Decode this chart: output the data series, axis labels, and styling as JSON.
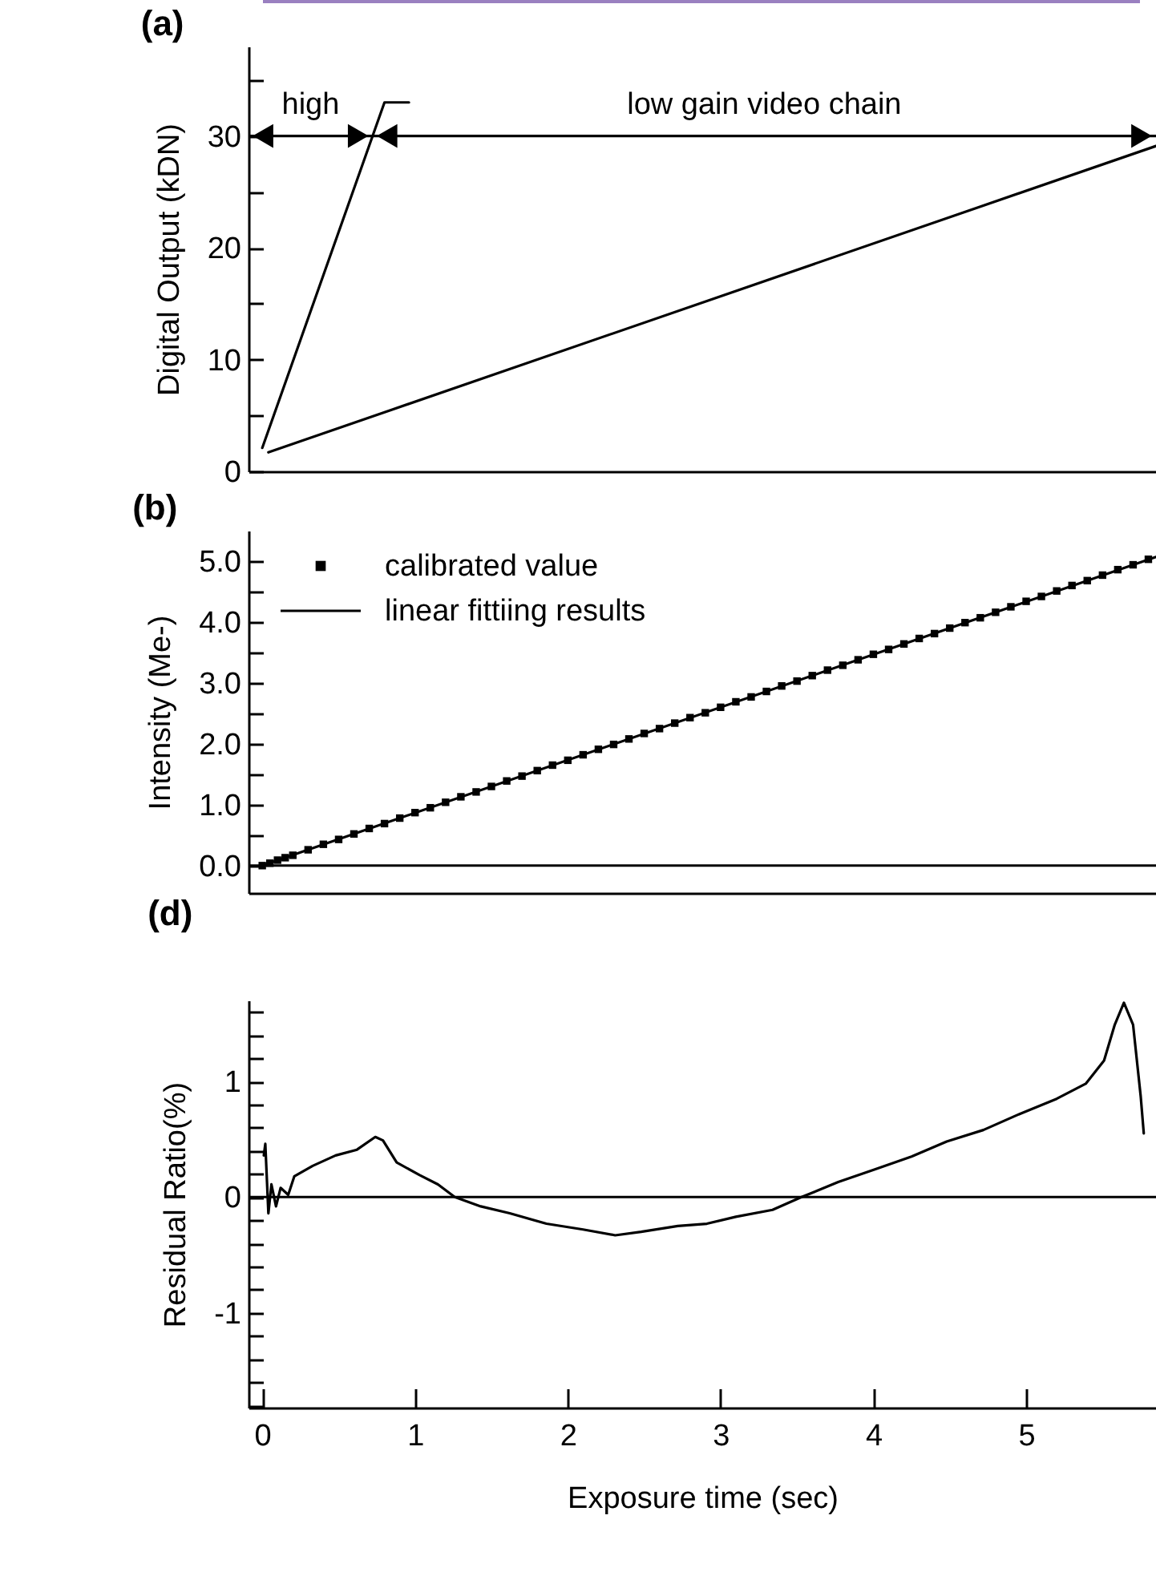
{
  "chart_data": [
    {
      "type": "line",
      "title": "(a)",
      "ylabel": "Digital Output (kDN)",
      "xlim": [
        -0.09,
        5.85
      ],
      "ylim": [
        0,
        38
      ],
      "yticks": [
        {
          "value": 0,
          "label": "0"
        },
        {
          "value": 5,
          "label": null
        },
        {
          "value": 10,
          "label": "10"
        },
        {
          "value": 15,
          "label": null
        },
        {
          "value": 20,
          "label": "20"
        },
        {
          "value": 25,
          "label": null
        },
        {
          "value": 30,
          "label": "30"
        },
        {
          "value": 35,
          "label": null
        }
      ],
      "tick_labels": "y",
      "series": [
        {
          "color": "#000000",
          "x": [
            0,
            0.8,
            0.96
          ],
          "values": [
            2.1,
            33,
            33
          ]
        },
        {
          "color": "#000000",
          "x": [
            0.04,
            5.85
          ],
          "values": [
            1.7,
            29.1
          ]
        }
      ],
      "annotations": [
        "high",
        "low gain video chain"
      ]
    },
    {
      "type": "line",
      "title": "(b)",
      "ylabel": "Intensity (Me-)",
      "xlim": [
        -0.09,
        5.85
      ],
      "ylim": [
        -0.45,
        5.5
      ],
      "yticks": [
        {
          "value": 0,
          "label": "0.0"
        },
        {
          "value": 0.5,
          "label": null
        },
        {
          "value": 1,
          "label": "1.0"
        },
        {
          "value": 1.5,
          "label": null
        },
        {
          "value": 2,
          "label": "2.0"
        },
        {
          "value": 2.5,
          "label": null
        },
        {
          "value": 3,
          "label": "3.0"
        },
        {
          "value": 3.5,
          "label": null
        },
        {
          "value": 4,
          "label": "4.0"
        },
        {
          "value": 4.5,
          "label": null
        },
        {
          "value": 5,
          "label": "5.0"
        }
      ],
      "tick_labels": "y",
      "legend": "top left",
      "series": [
        {
          "name": "calibrated value",
          "type": "scatter",
          "marker": "square",
          "color": "#000000",
          "x": [
            0,
            0.05,
            0.1,
            0.15,
            0.2,
            0.3,
            0.4,
            0.5,
            0.6,
            0.7,
            0.8,
            0.9,
            1.0,
            1.1,
            1.2,
            1.3,
            1.4,
            1.5,
            1.6,
            1.7,
            1.8,
            1.9,
            2.0,
            2.1,
            2.2,
            2.3,
            2.4,
            2.5,
            2.6,
            2.7,
            2.8,
            2.9,
            3.0,
            3.1,
            3.2,
            3.3,
            3.4,
            3.5,
            3.6,
            3.7,
            3.8,
            3.9,
            4.0,
            4.1,
            4.2,
            4.3,
            4.4,
            4.5,
            4.6,
            4.7,
            4.8,
            4.9,
            5.0,
            5.1,
            5.2,
            5.3,
            5.4,
            5.5,
            5.6,
            5.7,
            5.8
          ],
          "values": [
            0,
            0.04,
            0.09,
            0.13,
            0.17,
            0.26,
            0.35,
            0.43,
            0.52,
            0.61,
            0.69,
            0.78,
            0.87,
            0.95,
            1.04,
            1.13,
            1.21,
            1.3,
            1.39,
            1.47,
            1.56,
            1.65,
            1.73,
            1.82,
            1.91,
            1.99,
            2.08,
            2.17,
            2.25,
            2.34,
            2.43,
            2.51,
            2.6,
            2.69,
            2.77,
            2.86,
            2.95,
            3.03,
            3.12,
            3.21,
            3.29,
            3.38,
            3.47,
            3.55,
            3.64,
            3.73,
            3.81,
            3.9,
            3.99,
            4.07,
            4.16,
            4.25,
            4.34,
            4.42,
            4.51,
            4.6,
            4.68,
            4.77,
            4.86,
            4.94,
            5.03
          ]
        },
        {
          "name": "linear fittiing results",
          "type": "line",
          "color": "#000000",
          "x": [
            0,
            5.85
          ],
          "values": [
            0,
            5.07
          ]
        }
      ],
      "ref_lines": [
        {
          "axis": "y",
          "value": 0
        }
      ]
    },
    {
      "type": "line",
      "title": "(d)",
      "xlabel": "Exposure time (sec)",
      "ylabel": "Residual Ratio(%)",
      "xlim": [
        -0.09,
        5.85
      ],
      "xticks": [
        0,
        1,
        2,
        3,
        4,
        5
      ],
      "ylim": [
        -1.82,
        1.7
      ],
      "yticks": [
        {
          "value": -1.8,
          "label": null
        },
        {
          "value": -1.6,
          "label": null
        },
        {
          "value": -1.4,
          "label": null
        },
        {
          "value": -1.2,
          "label": null
        },
        {
          "value": -1,
          "label": "-1"
        },
        {
          "value": -0.8,
          "label": null
        },
        {
          "value": -0.6,
          "label": null
        },
        {
          "value": -0.4,
          "label": null
        },
        {
          "value": -0.2,
          "label": null
        },
        {
          "value": 0,
          "label": "0"
        },
        {
          "value": 0.2,
          "label": null
        },
        {
          "value": 0.4,
          "label": null
        },
        {
          "value": 0.6,
          "label": null
        },
        {
          "value": 0.8,
          "label": null
        },
        {
          "value": 1,
          "label": "1"
        },
        {
          "value": 1.2,
          "label": null
        },
        {
          "value": 1.4,
          "label": null
        },
        {
          "value": 1.6,
          "label": null
        }
      ],
      "series": [
        {
          "color": "#000000",
          "x": [
            0.01,
            0.02,
            0.04,
            0.06,
            0.09,
            0.12,
            0.17,
            0.21,
            0.33,
            0.48,
            0.62,
            0.74,
            0.79,
            0.88,
            1.03,
            1.15,
            1.26,
            1.43,
            1.62,
            1.86,
            2.1,
            2.31,
            2.48,
            2.72,
            2.91,
            3.1,
            3.34,
            3.53,
            3.77,
            4.01,
            4.25,
            4.48,
            4.72,
            4.96,
            5.2,
            5.39,
            5.51,
            5.58,
            5.64,
            5.7,
            5.75,
            5.77
          ],
          "values": [
            0.36,
            0.46,
            -0.14,
            0.11,
            -0.08,
            0.08,
            0.02,
            0.18,
            0.27,
            0.36,
            0.41,
            0.52,
            0.49,
            0.3,
            0.19,
            0.11,
            0,
            -0.08,
            -0.14,
            -0.23,
            -0.28,
            -0.33,
            -0.3,
            -0.25,
            -0.23,
            -0.17,
            -0.11,
            0,
            0.13,
            0.24,
            0.35,
            0.48,
            0.58,
            0.72,
            0.85,
            0.98,
            1.18,
            1.49,
            1.68,
            1.49,
            0.87,
            0.55
          ]
        }
      ],
      "ref_lines": [
        {
          "axis": "y",
          "value": 0
        }
      ]
    }
  ]
}
